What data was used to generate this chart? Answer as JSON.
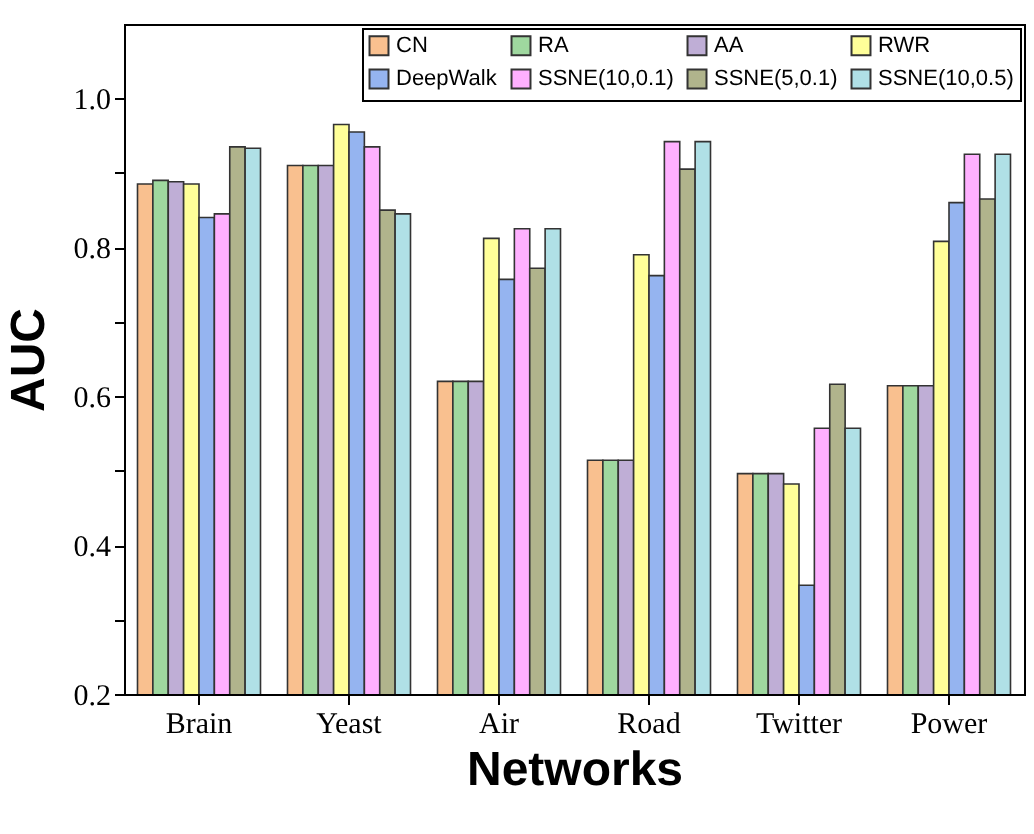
{
  "chart_data": {
    "type": "bar",
    "xlabel": "Networks",
    "ylabel": "AUC",
    "categories": [
      "Brain",
      "Yeast",
      "Air",
      "Road",
      "Twitter",
      "Power"
    ],
    "series": [
      {
        "name": "CN",
        "color": "#f9c08f",
        "values": [
          0.885,
          0.91,
          0.62,
          0.514,
          0.496,
          0.614
        ]
      },
      {
        "name": "RA",
        "color": "#9fd89f",
        "values": [
          0.89,
          0.91,
          0.62,
          0.514,
          0.496,
          0.614
        ]
      },
      {
        "name": "AA",
        "color": "#bfaed6",
        "values": [
          0.888,
          0.91,
          0.62,
          0.514,
          0.496,
          0.614
        ]
      },
      {
        "name": "RWR",
        "color": "#ffff99",
        "values": [
          0.885,
          0.965,
          0.812,
          0.79,
          0.482,
          0.808
        ]
      },
      {
        "name": "DeepWalk",
        "color": "#95b4f0",
        "values": [
          0.84,
          0.955,
          0.757,
          0.762,
          0.346,
          0.86
        ]
      },
      {
        "name": "SSNE(10,0.1)",
        "color": "#ffb0ff",
        "values": [
          0.845,
          0.935,
          0.825,
          0.942,
          0.557,
          0.925
        ]
      },
      {
        "name": "SSNE(5,0.1)",
        "color": "#b0b48c",
        "values": [
          0.935,
          0.85,
          0.772,
          0.905,
          0.616,
          0.865
        ]
      },
      {
        "name": "SSNE(10,0.5)",
        "color": "#b0e0e6",
        "values": [
          0.933,
          0.845,
          0.825,
          0.942,
          0.557,
          0.925
        ]
      }
    ],
    "ylim": [
      0.2,
      1.1
    ],
    "yticks": [
      0.2,
      {
        "value": 0.3,
        "label": null
      },
      0.4,
      {
        "value": 0.5,
        "label": null
      },
      0.6,
      {
        "value": 0.7,
        "label": null
      },
      0.8,
      {
        "value": 0.9,
        "label": null
      },
      {
        "value": 1,
        "label": "1.0"
      }
    ],
    "legend": "top right",
    "grid": false
  }
}
